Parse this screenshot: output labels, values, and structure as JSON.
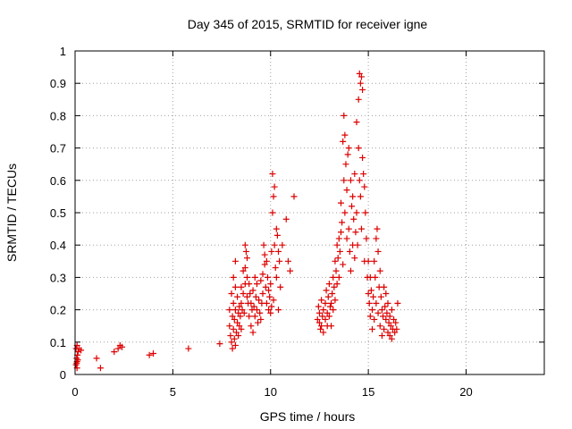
{
  "chart_data": {
    "type": "scatter",
    "title": "Day 345 of 2015, SRMTID for receiver igne",
    "xlabel": "GPS time / hours",
    "ylabel": "SRMTID / TECUs",
    "xlim": [
      0,
      24
    ],
    "ylim": [
      0,
      1
    ],
    "xticks": [
      0,
      5,
      10,
      15,
      20
    ],
    "yticks": [
      0,
      0.1,
      0.2,
      0.3,
      0.4,
      0.5,
      0.6,
      0.7,
      0.8,
      0.9,
      1
    ],
    "xtick_labels": [
      "0",
      "5",
      "10",
      "15",
      "20"
    ],
    "ytick_labels": [
      "0",
      "0.1",
      "0.2",
      "0.3",
      "0.4",
      "0.5",
      "0.6",
      "0.7",
      "0.8",
      "0.9",
      "1"
    ],
    "grid": true,
    "grid_style": "dotted",
    "marker": "+",
    "color": "#dd0000",
    "series": [
      {
        "name": "SRMTID",
        "points": [
          [
            0.05,
            0.08
          ],
          [
            0.08,
            0.05
          ],
          [
            0.1,
            0.04
          ],
          [
            0.12,
            0.06
          ],
          [
            0.05,
            0.03
          ],
          [
            0.15,
            0.07
          ],
          [
            0.1,
            0.09
          ],
          [
            0.2,
            0.08
          ],
          [
            0.1,
            0.02
          ],
          [
            0.3,
            0.075
          ],
          [
            0.08,
            0.035
          ],
          [
            0.14,
            0.045
          ],
          [
            1.1,
            0.05
          ],
          [
            1.3,
            0.02
          ],
          [
            2.0,
            0.07
          ],
          [
            2.2,
            0.08
          ],
          [
            2.3,
            0.09
          ],
          [
            2.4,
            0.085
          ],
          [
            3.8,
            0.06
          ],
          [
            4.0,
            0.065
          ],
          [
            5.8,
            0.08
          ],
          [
            7.4,
            0.095
          ],
          [
            7.9,
            0.15
          ],
          [
            7.9,
            0.2
          ],
          [
            7.95,
            0.12
          ],
          [
            8.0,
            0.25
          ],
          [
            8.0,
            0.1
          ],
          [
            8.05,
            0.18
          ],
          [
            8.05,
            0.08
          ],
          [
            8.1,
            0.3
          ],
          [
            8.1,
            0.22
          ],
          [
            8.1,
            0.14
          ],
          [
            8.15,
            0.17
          ],
          [
            8.15,
            0.11
          ],
          [
            8.2,
            0.35
          ],
          [
            8.2,
            0.27
          ],
          [
            8.2,
            0.2
          ],
          [
            8.2,
            0.09
          ],
          [
            8.25,
            0.13
          ],
          [
            8.3,
            0.24
          ],
          [
            8.3,
            0.16
          ],
          [
            8.35,
            0.19
          ],
          [
            8.35,
            0.12
          ],
          [
            8.4,
            0.21
          ],
          [
            8.4,
            0.15
          ],
          [
            8.45,
            0.18
          ],
          [
            8.5,
            0.27
          ],
          [
            8.5,
            0.22
          ],
          [
            8.5,
            0.14
          ],
          [
            8.55,
            0.2
          ],
          [
            8.6,
            0.32
          ],
          [
            8.6,
            0.25
          ],
          [
            8.65,
            0.19
          ],
          [
            8.7,
            0.4
          ],
          [
            8.7,
            0.33
          ],
          [
            8.7,
            0.28
          ],
          [
            8.75,
            0.38
          ],
          [
            8.8,
            0.36
          ],
          [
            8.8,
            0.3
          ],
          [
            8.8,
            0.24
          ],
          [
            8.85,
            0.22
          ],
          [
            8.9,
            0.28
          ],
          [
            8.9,
            0.18
          ],
          [
            8.95,
            0.25
          ],
          [
            9.0,
            0.22
          ],
          [
            9.0,
            0.15
          ],
          [
            9.05,
            0.2
          ],
          [
            9.1,
            0.26
          ],
          [
            9.1,
            0.13
          ],
          [
            9.15,
            0.21
          ],
          [
            9.2,
            0.3
          ],
          [
            9.2,
            0.18
          ],
          [
            9.25,
            0.24
          ],
          [
            9.3,
            0.2
          ],
          [
            9.3,
            0.28
          ],
          [
            9.35,
            0.16
          ],
          [
            9.4,
            0.23
          ],
          [
            9.45,
            0.19
          ],
          [
            9.5,
            0.17
          ],
          [
            9.5,
            0.29
          ],
          [
            9.55,
            0.22
          ],
          [
            9.6,
            0.25
          ],
          [
            9.6,
            0.31
          ],
          [
            9.65,
            0.4
          ],
          [
            9.7,
            0.37
          ],
          [
            9.7,
            0.34
          ],
          [
            9.75,
            0.27
          ],
          [
            9.8,
            0.35
          ],
          [
            9.8,
            0.22
          ],
          [
            9.85,
            0.3
          ],
          [
            9.9,
            0.26
          ],
          [
            9.9,
            0.2
          ],
          [
            9.95,
            0.24
          ],
          [
            10.0,
            0.28
          ],
          [
            10.0,
            0.19
          ],
          [
            10.05,
            0.38
          ],
          [
            10.05,
            0.21
          ],
          [
            10.1,
            0.5
          ],
          [
            10.1,
            0.62
          ],
          [
            10.15,
            0.55
          ],
          [
            10.15,
            0.23
          ],
          [
            10.2,
            0.58
          ],
          [
            10.2,
            0.4
          ],
          [
            10.25,
            0.33
          ],
          [
            10.3,
            0.45
          ],
          [
            10.3,
            0.3
          ],
          [
            10.35,
            0.43
          ],
          [
            10.4,
            0.38
          ],
          [
            10.4,
            0.2
          ],
          [
            10.45,
            0.35
          ],
          [
            10.5,
            0.27
          ],
          [
            10.6,
            0.4
          ],
          [
            10.8,
            0.48
          ],
          [
            10.9,
            0.35
          ],
          [
            11.0,
            0.32
          ],
          [
            11.2,
            0.55
          ],
          [
            12.4,
            0.17
          ],
          [
            12.45,
            0.21
          ],
          [
            12.5,
            0.16
          ],
          [
            12.5,
            0.19
          ],
          [
            12.55,
            0.14
          ],
          [
            12.6,
            0.23
          ],
          [
            12.6,
            0.15
          ],
          [
            12.65,
            0.18
          ],
          [
            12.7,
            0.13
          ],
          [
            12.7,
            0.2
          ],
          [
            12.8,
            0.17
          ],
          [
            12.8,
            0.22
          ],
          [
            12.85,
            0.26
          ],
          [
            12.9,
            0.19
          ],
          [
            12.9,
            0.15
          ],
          [
            12.95,
            0.24
          ],
          [
            13.0,
            0.18
          ],
          [
            13.0,
            0.28
          ],
          [
            13.05,
            0.21
          ],
          [
            13.1,
            0.22
          ],
          [
            13.1,
            0.15
          ],
          [
            13.15,
            0.25
          ],
          [
            13.2,
            0.2
          ],
          [
            13.2,
            0.3
          ],
          [
            13.25,
            0.27
          ],
          [
            13.3,
            0.35
          ],
          [
            13.3,
            0.23
          ],
          [
            13.35,
            0.32
          ],
          [
            13.4,
            0.4
          ],
          [
            13.4,
            0.28
          ],
          [
            13.45,
            0.36
          ],
          [
            13.5,
            0.42
          ],
          [
            13.5,
            0.3
          ],
          [
            13.55,
            0.38
          ],
          [
            13.6,
            0.53
          ],
          [
            13.6,
            0.44
          ],
          [
            13.65,
            0.47
          ],
          [
            13.7,
            0.72
          ],
          [
            13.7,
            0.34
          ],
          [
            13.75,
            0.8
          ],
          [
            13.75,
            0.6
          ],
          [
            13.8,
            0.74
          ],
          [
            13.8,
            0.5
          ],
          [
            13.85,
            0.65
          ],
          [
            13.9,
            0.57
          ],
          [
            13.9,
            0.42
          ],
          [
            13.95,
            0.68
          ],
          [
            14.0,
            0.7
          ],
          [
            14.0,
            0.45
          ],
          [
            14.05,
            0.38
          ],
          [
            14.1,
            0.6
          ],
          [
            14.1,
            0.32
          ],
          [
            14.15,
            0.52
          ],
          [
            14.2,
            0.55
          ],
          [
            14.2,
            0.4
          ],
          [
            14.25,
            0.48
          ],
          [
            14.3,
            0.62
          ],
          [
            14.3,
            0.36
          ],
          [
            14.35,
            0.44
          ],
          [
            14.4,
            0.78
          ],
          [
            14.4,
            0.5
          ],
          [
            14.45,
            0.4
          ],
          [
            14.5,
            0.85
          ],
          [
            14.5,
            0.7
          ],
          [
            14.55,
            0.93
          ],
          [
            14.55,
            0.6
          ],
          [
            14.6,
            0.9
          ],
          [
            14.6,
            0.55
          ],
          [
            14.65,
            0.92
          ],
          [
            14.65,
            0.45
          ],
          [
            14.7,
            0.88
          ],
          [
            14.7,
            0.67
          ],
          [
            14.75,
            0.62
          ],
          [
            14.8,
            0.58
          ],
          [
            14.8,
            0.35
          ],
          [
            14.85,
            0.5
          ],
          [
            14.9,
            0.42
          ],
          [
            14.95,
            0.3
          ],
          [
            15.0,
            0.35
          ],
          [
            15.0,
            0.25
          ],
          [
            15.05,
            0.22
          ],
          [
            15.1,
            0.3
          ],
          [
            15.1,
            0.18
          ],
          [
            15.15,
            0.26
          ],
          [
            15.2,
            0.2
          ],
          [
            15.2,
            0.14
          ],
          [
            15.25,
            0.24
          ],
          [
            15.3,
            0.35
          ],
          [
            15.3,
            0.17
          ],
          [
            15.35,
            0.3
          ],
          [
            15.4,
            0.42
          ],
          [
            15.4,
            0.22
          ],
          [
            15.45,
            0.45
          ],
          [
            15.5,
            0.38
          ],
          [
            15.5,
            0.19
          ],
          [
            15.55,
            0.27
          ],
          [
            15.6,
            0.32
          ],
          [
            15.6,
            0.15
          ],
          [
            15.65,
            0.24
          ],
          [
            15.7,
            0.2
          ],
          [
            15.7,
            0.12
          ],
          [
            15.75,
            0.18
          ],
          [
            15.8,
            0.27
          ],
          [
            15.8,
            0.14
          ],
          [
            15.85,
            0.21
          ],
          [
            15.9,
            0.17
          ],
          [
            15.9,
            0.25
          ],
          [
            15.95,
            0.19
          ],
          [
            16.0,
            0.22
          ],
          [
            16.0,
            0.13
          ],
          [
            16.05,
            0.16
          ],
          [
            16.1,
            0.18
          ],
          [
            16.1,
            0.12
          ],
          [
            16.15,
            0.15
          ],
          [
            16.2,
            0.2
          ],
          [
            16.2,
            0.11
          ],
          [
            16.25,
            0.14
          ],
          [
            16.3,
            0.17
          ],
          [
            16.35,
            0.13
          ],
          [
            16.4,
            0.16
          ],
          [
            16.45,
            0.14
          ],
          [
            16.5,
            0.22
          ]
        ]
      }
    ]
  }
}
